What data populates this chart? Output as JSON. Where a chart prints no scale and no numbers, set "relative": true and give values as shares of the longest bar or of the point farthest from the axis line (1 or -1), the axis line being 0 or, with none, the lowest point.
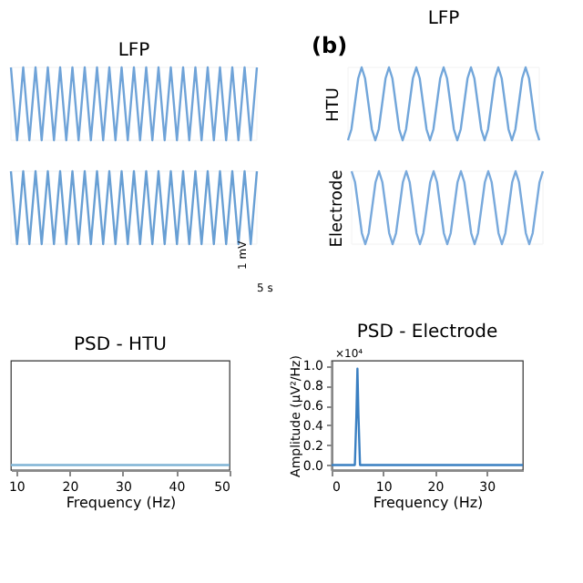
{
  "chart_data": [
    {
      "type": "line",
      "title": "LFP",
      "relative": true,
      "grid": false,
      "tick_labels": false,
      "categories": [
        null,
        null,
        null,
        null,
        null,
        null,
        null,
        null,
        null,
        null,
        null,
        null,
        null,
        null,
        null,
        null,
        null,
        null,
        null,
        null,
        null,
        null,
        null,
        null,
        null,
        null,
        null,
        null,
        null,
        null,
        null,
        null,
        null,
        null,
        null,
        null,
        null,
        null,
        null,
        null,
        null
      ],
      "series": [
        {
          "color": "#6fa3d8",
          "values": [
            1,
            0,
            1,
            0,
            1,
            0,
            1,
            0,
            1,
            0,
            1,
            0,
            1,
            0,
            1,
            0,
            1,
            0,
            1,
            0,
            1,
            0,
            1,
            0,
            1,
            0,
            1,
            0,
            1,
            0,
            1,
            0,
            1,
            0,
            1,
            0,
            1,
            0,
            1,
            0,
            1
          ]
        }
      ]
    },
    {
      "type": "line",
      "title": "LFP",
      "ylabel": "HTU",
      "relative": true,
      "grid": false,
      "tick_labels": false,
      "annotations": [
        "(b)"
      ],
      "categories": [
        null,
        null,
        null,
        null,
        null,
        null,
        null,
        null,
        null,
        null,
        null,
        null,
        null,
        null,
        null,
        null,
        null,
        null,
        null,
        null,
        null,
        null,
        null,
        null,
        null,
        null,
        null,
        null,
        null,
        null,
        null,
        null,
        null,
        null,
        null,
        null,
        null,
        null,
        null,
        null,
        null,
        null,
        null,
        null,
        null,
        null,
        null,
        null,
        null,
        null,
        null,
        null,
        null,
        null,
        null,
        null,
        null
      ],
      "series": [
        {
          "color": "#72a6da",
          "values": [
            0,
            0.15,
            0.5,
            0.85,
            1,
            0.85,
            0.5,
            0.15,
            0,
            0.15,
            0.5,
            0.85,
            1,
            0.85,
            0.5,
            0.15,
            0,
            0.15,
            0.5,
            0.85,
            1,
            0.85,
            0.5,
            0.15,
            0,
            0.15,
            0.5,
            0.85,
            1,
            0.85,
            0.5,
            0.15,
            0,
            0.15,
            0.5,
            0.85,
            1,
            0.85,
            0.5,
            0.15,
            0,
            0.15,
            0.5,
            0.85,
            1,
            0.85,
            0.5,
            0.15,
            0,
            0.15,
            0.5,
            0.85,
            1,
            0.85,
            0.5,
            0.15,
            0
          ]
        }
      ]
    },
    {
      "type": "line",
      "relative": true,
      "grid": false,
      "tick_labels": false,
      "annotations": [
        "1 mV",
        "5 s"
      ],
      "categories": [
        null,
        null,
        null,
        null,
        null,
        null,
        null,
        null,
        null,
        null,
        null,
        null,
        null,
        null,
        null,
        null,
        null,
        null,
        null,
        null,
        null,
        null,
        null,
        null,
        null,
        null,
        null,
        null,
        null,
        null,
        null,
        null,
        null,
        null,
        null,
        null,
        null,
        null,
        null,
        null,
        null
      ],
      "series": [
        {
          "color": "#689fd4",
          "values": [
            1,
            0,
            1,
            0,
            1,
            0,
            1,
            0,
            1,
            0,
            1,
            0,
            1,
            0,
            1,
            0,
            1,
            0,
            1,
            0,
            1,
            0,
            1,
            0,
            1,
            0,
            1,
            0,
            1,
            0,
            1,
            0,
            1,
            0,
            1,
            0,
            1,
            0,
            1,
            0,
            1
          ]
        }
      ]
    },
    {
      "type": "line",
      "ylabel": "Electrode",
      "relative": true,
      "grid": false,
      "tick_labels": false,
      "categories": [
        null,
        null,
        null,
        null,
        null,
        null,
        null,
        null,
        null,
        null,
        null,
        null,
        null,
        null,
        null,
        null,
        null,
        null,
        null,
        null,
        null,
        null,
        null,
        null,
        null,
        null,
        null,
        null,
        null,
        null,
        null,
        null,
        null,
        null,
        null,
        null,
        null,
        null,
        null,
        null,
        null,
        null,
        null,
        null,
        null,
        null,
        null,
        null,
        null,
        null,
        null,
        null,
        null,
        null,
        null,
        null,
        null
      ],
      "series": [
        {
          "color": "#78a9dc",
          "values": [
            1,
            0.85,
            0.5,
            0.15,
            0,
            0.15,
            0.5,
            0.85,
            1,
            0.85,
            0.5,
            0.15,
            0,
            0.15,
            0.5,
            0.85,
            1,
            0.85,
            0.5,
            0.15,
            0,
            0.15,
            0.5,
            0.85,
            1,
            0.85,
            0.5,
            0.15,
            0,
            0.15,
            0.5,
            0.85,
            1,
            0.85,
            0.5,
            0.15,
            0,
            0.15,
            0.5,
            0.85,
            1,
            0.85,
            0.5,
            0.15,
            0,
            0.15,
            0.5,
            0.85,
            1,
            0.85,
            0.5,
            0.15,
            0,
            0.15,
            0.5,
            0.85,
            1
          ]
        }
      ]
    },
    {
      "type": "line",
      "title": "PSD - HTU",
      "xlabel": "Frequency (Hz)",
      "grid": false,
      "tick_labels": "x",
      "xlim": [
        9,
        50
      ],
      "xticks": [
        10,
        20,
        30,
        40,
        50
      ],
      "ylim": [
        -0.05,
        1.05
      ],
      "series": [
        {
          "color": "#7fb3d5",
          "x": [
            9,
            50
          ],
          "values": [
            0,
            0
          ]
        }
      ]
    },
    {
      "type": "line",
      "title": "PSD - Electrode",
      "xlabel": "Frequency (Hz)",
      "ylabel": "Amplitude (μV²/Hz)",
      "grid": false,
      "annotations": [
        "×10⁴"
      ],
      "xlim": [
        0,
        37
      ],
      "xticks": [
        0,
        10,
        20,
        30
      ],
      "ylim": [
        -0.05,
        1.05
      ],
      "yticks": [
        {
          "value": 0,
          "label": "0.0"
        },
        {
          "value": 0.2,
          "label": "0.2"
        },
        {
          "value": 0.4,
          "label": "0.4"
        },
        {
          "value": 0.6,
          "label": "0.6"
        },
        {
          "value": 0.8,
          "label": "0.8"
        },
        {
          "value": 1,
          "label": "1.0"
        }
      ],
      "series": [
        {
          "color": "#3a7fc1",
          "x": [
            0,
            4.5,
            4.8,
            5,
            5.2,
            5.5,
            37
          ],
          "values": [
            0,
            0,
            0.5,
            0.97,
            0.5,
            0,
            0
          ]
        }
      ]
    }
  ]
}
